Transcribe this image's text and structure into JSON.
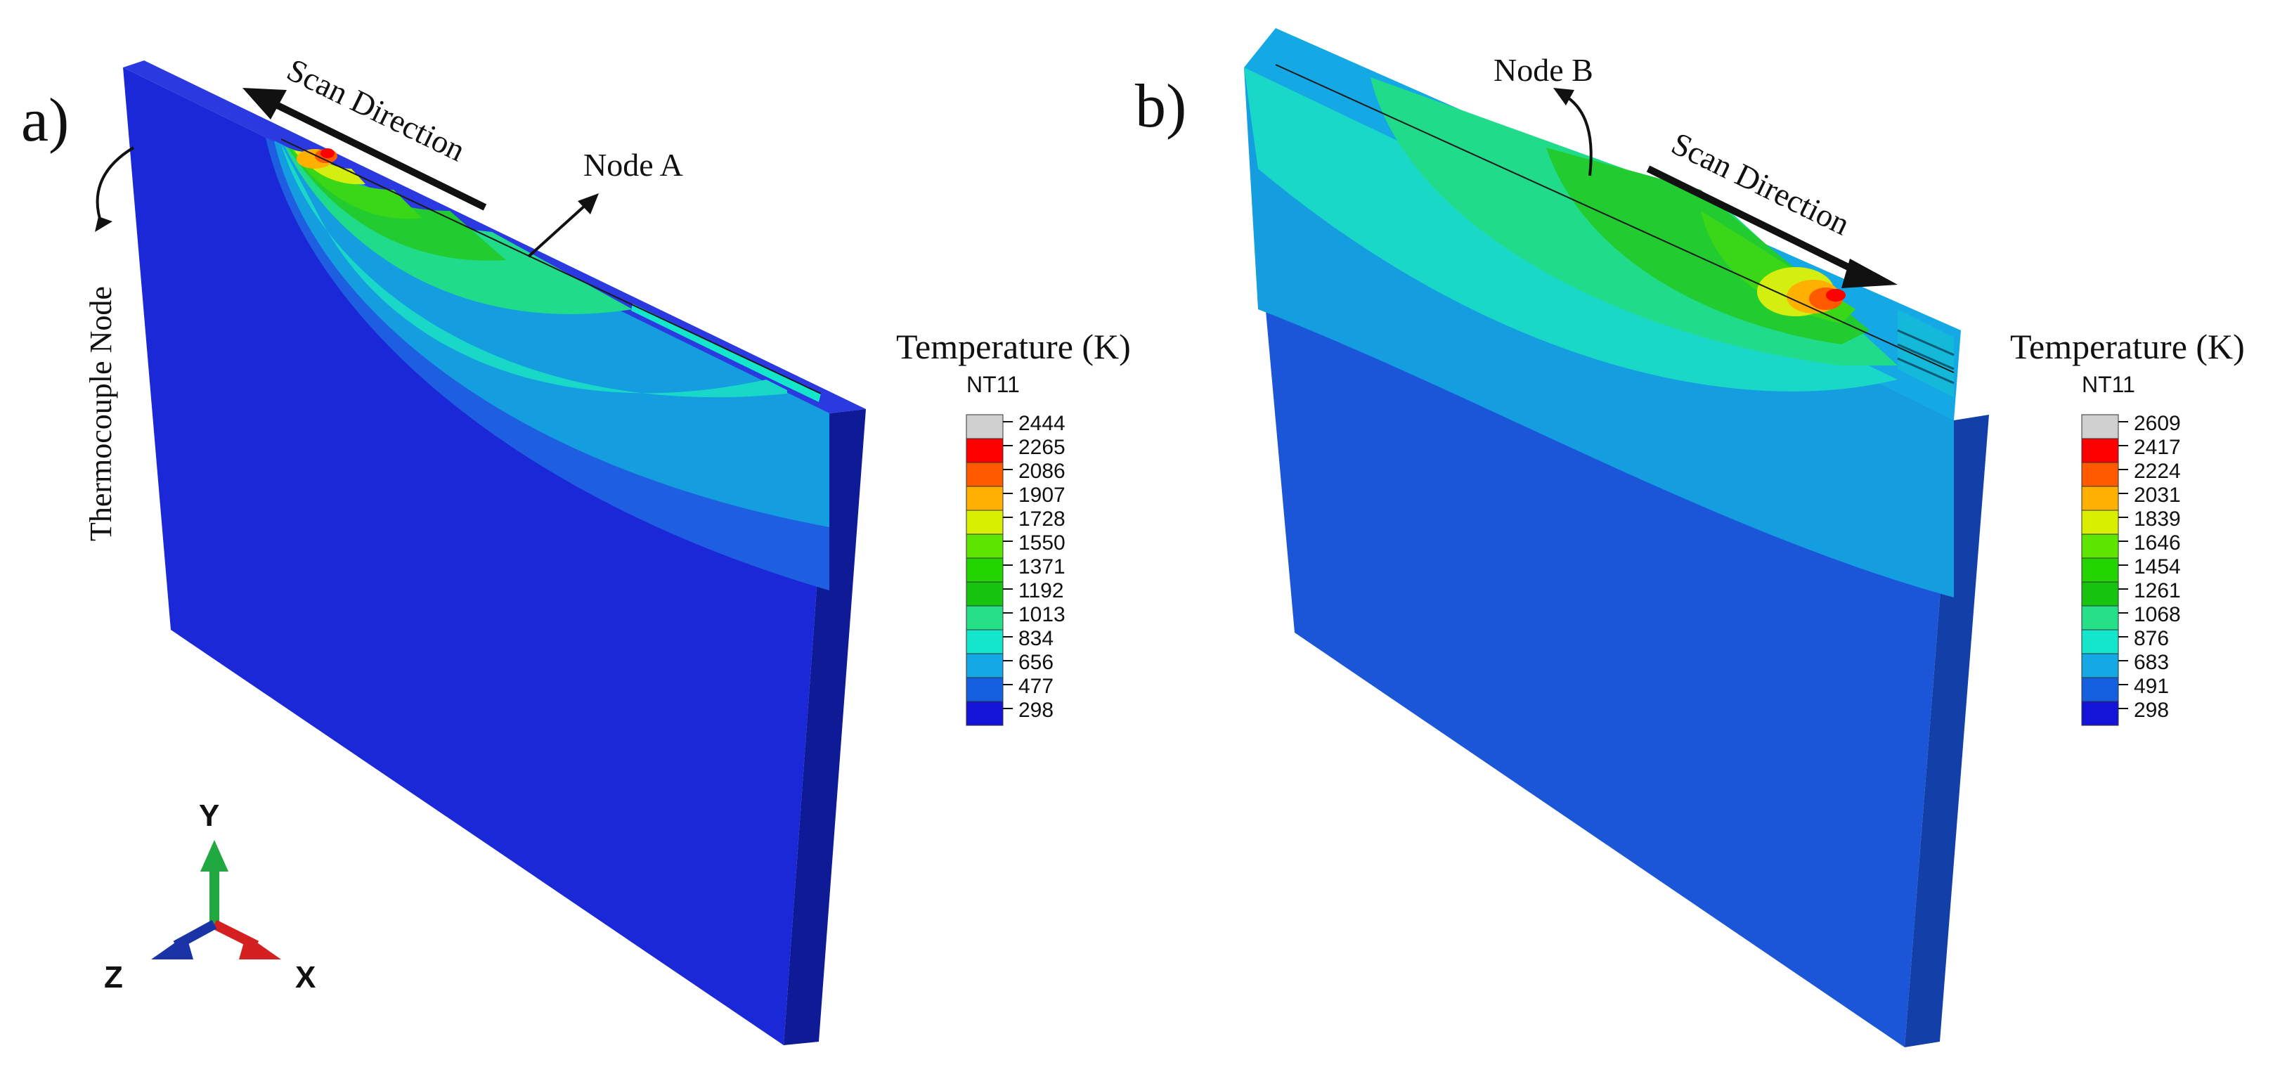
{
  "panels": [
    {
      "label": "a)",
      "scan_direction": "Scan Direction",
      "node_label": "Node A",
      "thermocouple_label": "Thermocouple Node",
      "legend": {
        "title": "Temperature (K)",
        "variable": "NT11",
        "values": [
          "2444",
          "2265",
          "2086",
          "1907",
          "1728",
          "1550",
          "1371",
          "1192",
          "1013",
          "834",
          "656",
          "477",
          "298"
        ]
      }
    },
    {
      "label": "b)",
      "scan_direction": "Scan Direction",
      "node_label": "Node B",
      "legend": {
        "title": "Temperature (K)",
        "variable": "NT11",
        "values": [
          "2609",
          "2417",
          "2224",
          "2031",
          "1839",
          "1646",
          "1454",
          "1261",
          "1068",
          "876",
          "683",
          "491",
          "298"
        ]
      }
    }
  ],
  "triad": {
    "y": "Y",
    "z": "Z",
    "x": "X"
  },
  "legend_colors": [
    "#d0d0d0",
    "#ff0000",
    "#ff5a00",
    "#ffb000",
    "#d8f000",
    "#5ee600",
    "#22d400",
    "#16c410",
    "#25e088",
    "#14e6cc",
    "#14a8e4",
    "#1460e0",
    "#1414d8"
  ],
  "colors": {
    "base": "#1a28d8",
    "base_side": "#0f1a96",
    "contour_656": "#1e5ee0",
    "contour_834": "#149ee0",
    "contour_1013": "#1ad8c8",
    "contour_1192": "#20dc8a",
    "contour_1371": "#22cc30",
    "contour_1550": "#3ad618",
    "contour_1728": "#d4ee10",
    "contour_1907": "#ffb000",
    "contour_2086": "#ff5a00",
    "contour_2265": "#ff0000",
    "axis_y": "#22a840",
    "axis_x": "#d42020",
    "axis_z": "#1a34a8"
  }
}
